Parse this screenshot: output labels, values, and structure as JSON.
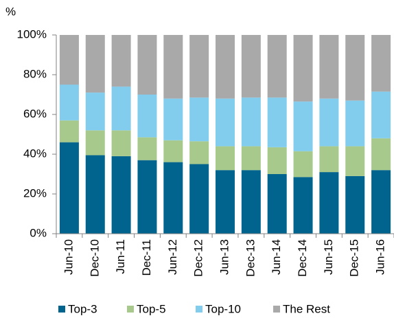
{
  "chart_data": {
    "type": "stacked_bar",
    "y_label": "%",
    "categories": [
      "Jun-10",
      "Dec-10",
      "Jun-11",
      "Dec-11",
      "Jun-12",
      "Dec-12",
      "Jun-13",
      "Dec-13",
      "Jun-14",
      "Dec-14",
      "Jun-15",
      "Dec-15",
      "Jun-16"
    ],
    "series": [
      {
        "name": "Top-3",
        "color": "#00648e",
        "values": [
          46,
          39.5,
          39,
          37,
          36,
          35,
          32,
          32,
          30,
          28.5,
          31,
          29,
          32
        ]
      },
      {
        "name": "Top-5",
        "color": "#a8c98c",
        "values": [
          11,
          12.5,
          13,
          11.5,
          11,
          11.5,
          12,
          12,
          13.5,
          13,
          13,
          15,
          16
        ]
      },
      {
        "name": "Top-10",
        "color": "#82cdee",
        "values": [
          18,
          19,
          22,
          21.5,
          21,
          22,
          24,
          24.5,
          25,
          25,
          24,
          23,
          23.5
        ]
      },
      {
        "name": "The Rest",
        "color": "#a9a9a9",
        "values": [
          25,
          29,
          26,
          30,
          32,
          31.5,
          32,
          31.5,
          31.5,
          33.5,
          32,
          33,
          28.5
        ]
      }
    ],
    "ylim": [
      0,
      100
    ],
    "yticks": [
      {
        "value": 0,
        "label": "0%"
      },
      {
        "value": 20,
        "label": "20%"
      },
      {
        "value": 40,
        "label": "40%"
      },
      {
        "value": 60,
        "label": "60%"
      },
      {
        "value": 80,
        "label": "80%"
      },
      {
        "value": 100,
        "label": "100%"
      }
    ],
    "grid": false,
    "legend": "bottom"
  }
}
